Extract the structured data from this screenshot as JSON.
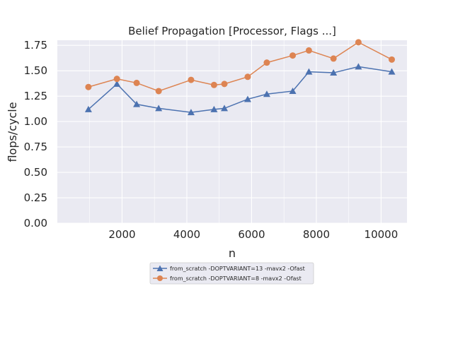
{
  "chart_data": {
    "type": "line",
    "title": "Belief Propagation [Processor, Flags ...]",
    "xlabel": "n",
    "ylabel": "flops/cycle",
    "xlim": [
      0,
      10800
    ],
    "ylim": [
      0,
      1.8
    ],
    "xticks": [
      2000,
      4000,
      6000,
      8000,
      10000
    ],
    "xtick_labels": [
      "2000",
      "4000",
      "6000",
      "8000",
      "10000"
    ],
    "yticks": [
      0,
      0.25,
      0.5,
      0.75,
      1.0,
      1.25,
      1.5,
      1.75
    ],
    "ytick_labels": [
      "0.00",
      "0.25",
      "0.50",
      "0.75",
      "1.00",
      "1.25",
      "1.50",
      "1.75"
    ],
    "grid": true,
    "legend_position": "below plot",
    "series": [
      {
        "name": "from_scratch -DOPTVARIANT=13 -mavx2 -Ofast",
        "color": "#4c72b0",
        "marker": "triangle",
        "x": [
          960,
          1840,
          2450,
          3130,
          4130,
          4840,
          5160,
          5880,
          6470,
          7270,
          7770,
          8530,
          9300,
          10330
        ],
        "y": [
          1.12,
          1.37,
          1.17,
          1.13,
          1.09,
          1.12,
          1.13,
          1.22,
          1.27,
          1.3,
          1.49,
          1.48,
          1.54,
          1.49
        ]
      },
      {
        "name": "from_scratch -DOPTVARIANT=8 -mavx2 -Ofast",
        "color": "#dd8452",
        "marker": "circle",
        "x": [
          960,
          1840,
          2450,
          3130,
          4130,
          4840,
          5160,
          5880,
          6470,
          7270,
          7770,
          8530,
          9300,
          10330
        ],
        "y": [
          1.34,
          1.42,
          1.38,
          1.3,
          1.41,
          1.36,
          1.37,
          1.44,
          1.58,
          1.65,
          1.7,
          1.62,
          1.78,
          1.61
        ]
      }
    ]
  }
}
